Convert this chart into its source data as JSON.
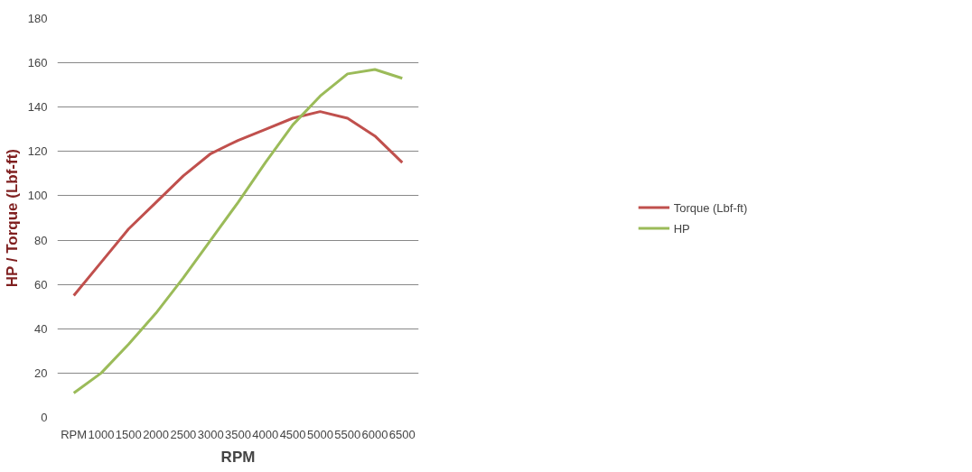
{
  "chart_data": {
    "type": "line",
    "xlabel": "RPM",
    "ylabel": "HP / Torque (Lbf-ft)",
    "categories": [
      "RPM",
      "1000",
      "1500",
      "2000",
      "2500",
      "3000",
      "3500",
      "4000",
      "4500",
      "5000",
      "5500",
      "6000",
      "6500"
    ],
    "series": [
      {
        "name": "Torque (Lbf-ft)",
        "color": "#c0504d",
        "values": [
          55,
          70,
          85,
          97,
          109,
          119,
          125,
          130,
          135,
          138,
          135,
          127,
          115
        ]
      },
      {
        "name": "HP",
        "color": "#9bbb59",
        "values": [
          11,
          20,
          33,
          47,
          63,
          80,
          97,
          115,
          132,
          145,
          155,
          157,
          153
        ]
      }
    ],
    "ylim": [
      0,
      180
    ],
    "yticks": [
      0,
      20,
      40,
      60,
      80,
      100,
      120,
      140,
      160,
      180
    ],
    "grid": "y",
    "legend": "right",
    "marker": "none",
    "line_style": "solid"
  }
}
